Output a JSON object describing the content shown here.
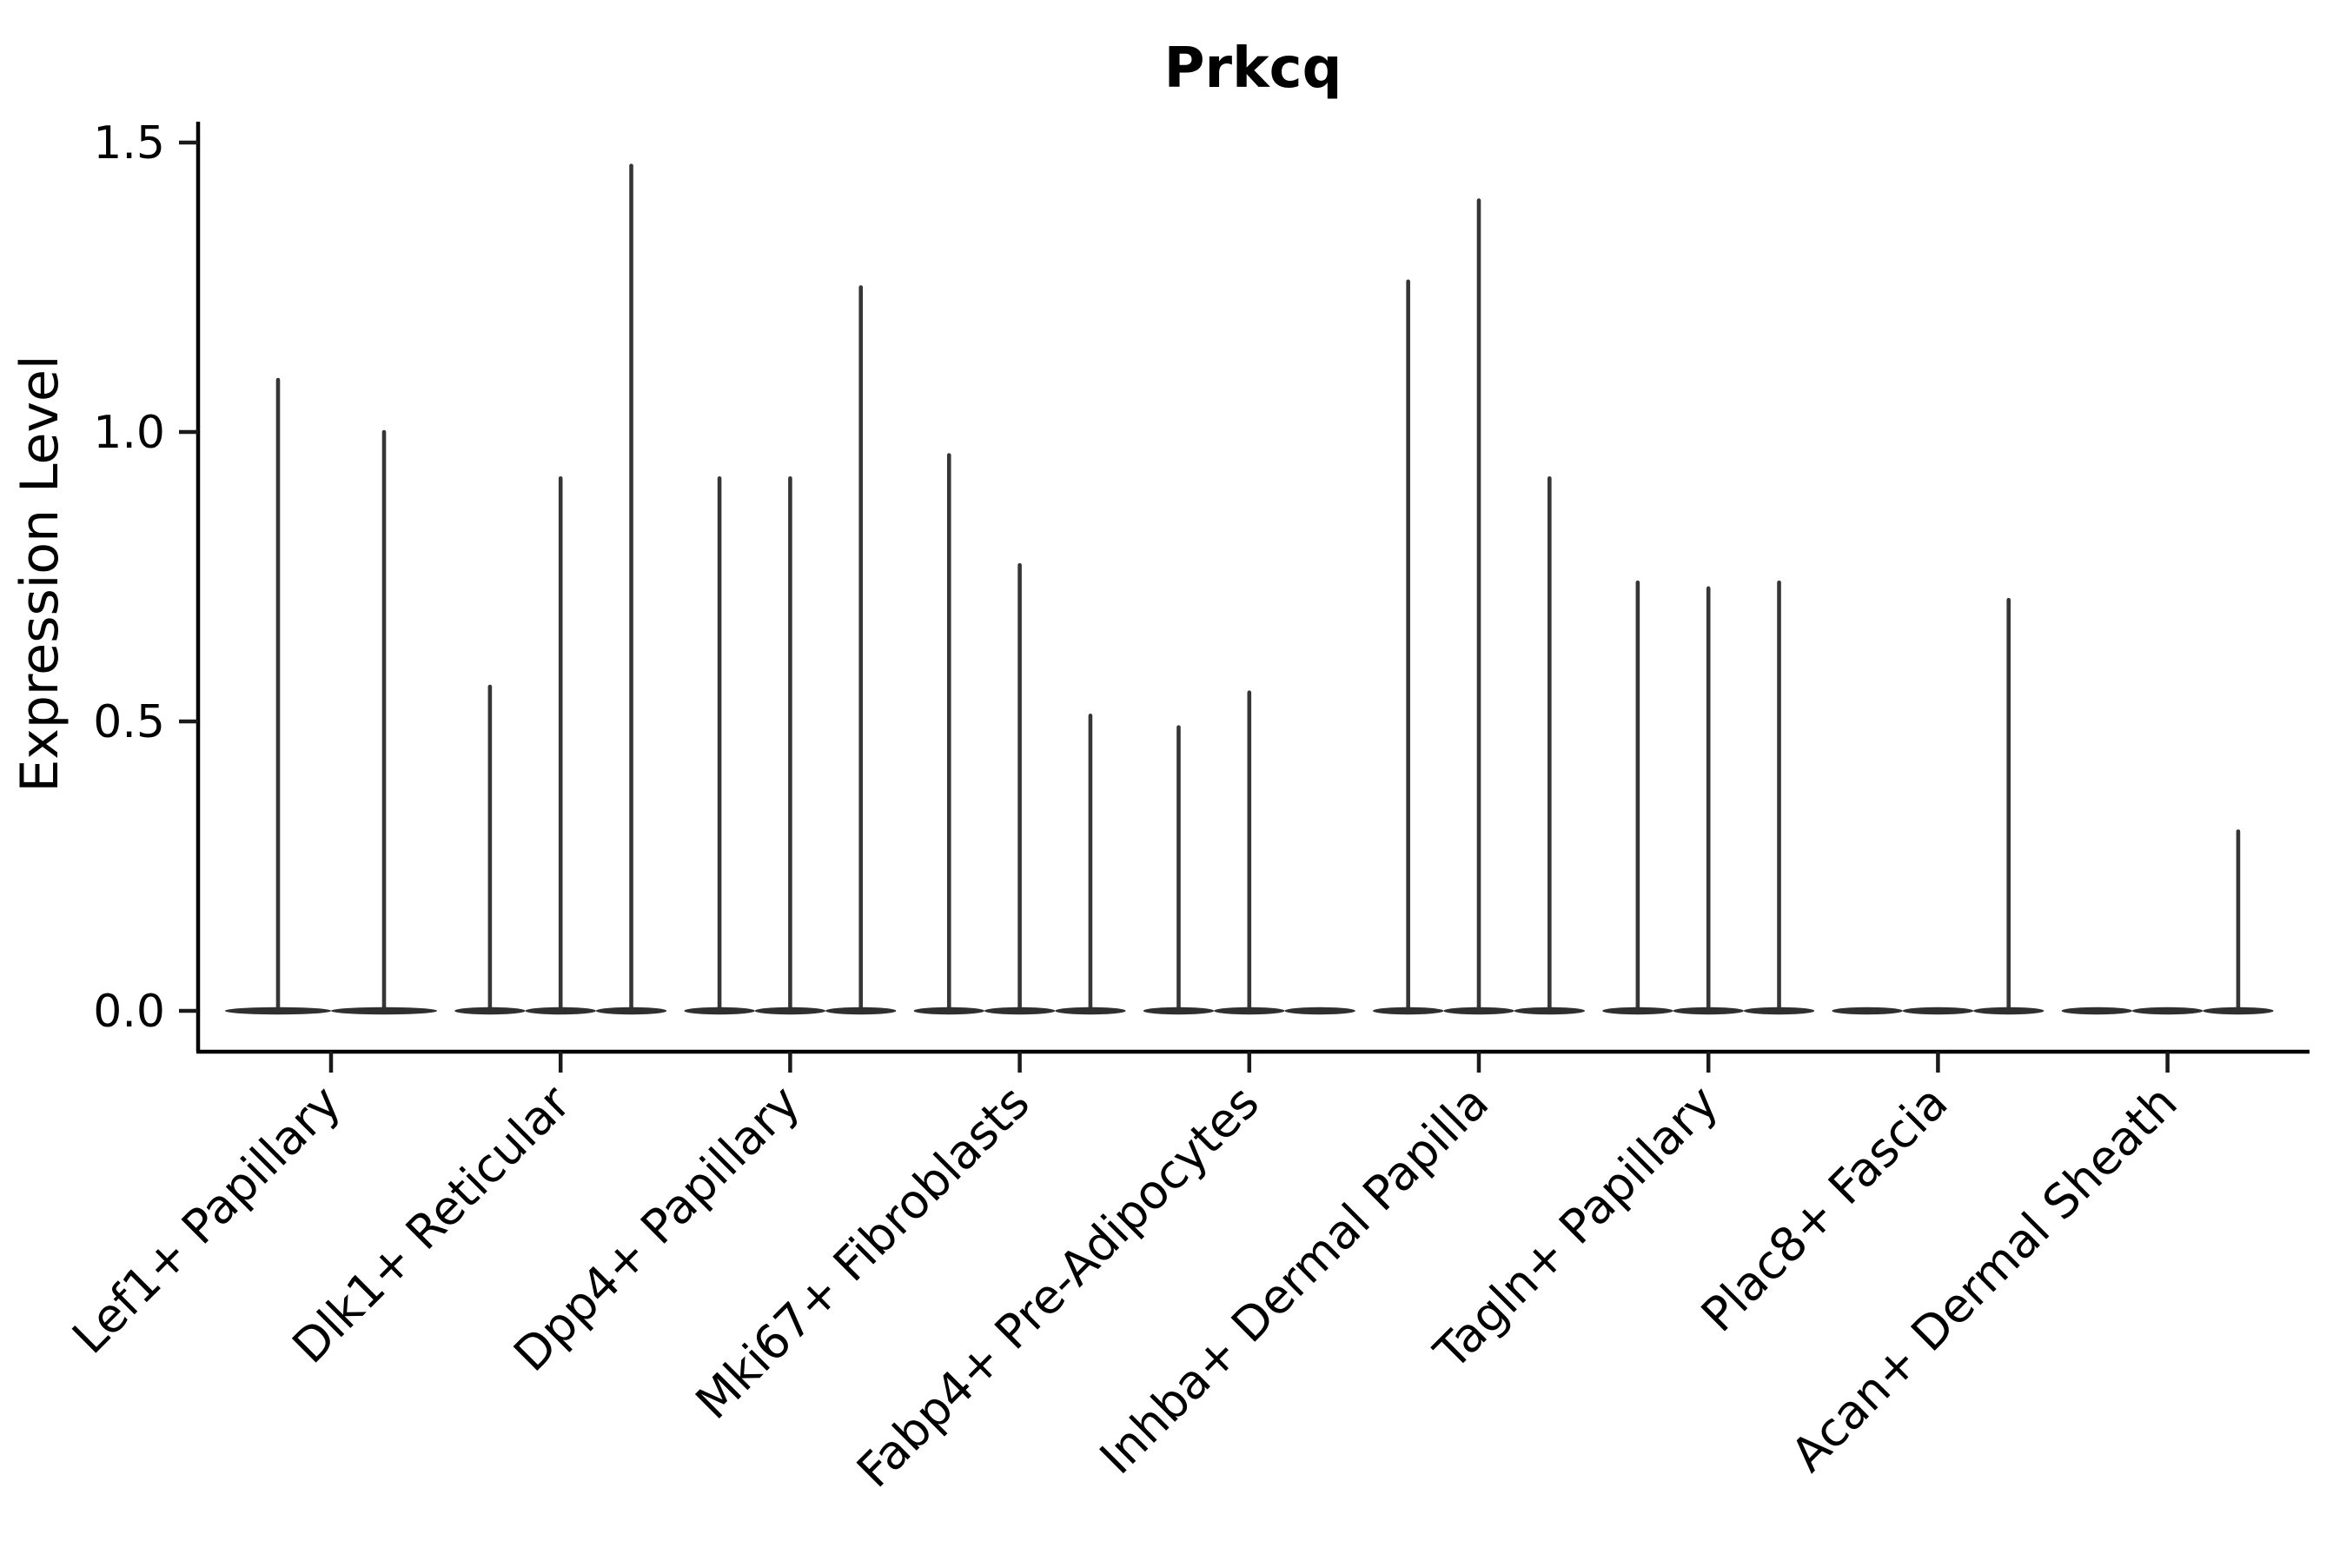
{
  "chart_data": {
    "type": "violin",
    "title": "Prkcq",
    "ylabel": "Expression Level",
    "xlabel": "",
    "yticks": [
      0.0,
      0.5,
      1.0,
      1.5
    ],
    "ylim": [
      0,
      1.5
    ],
    "grid": "off",
    "legend": "none",
    "description": "Stacked violin plot of gene expression; each category holds narrow spike-shaped violins (collapsed at 0 with a thin tail up to the max expression value).",
    "categories": [
      "Lef1+ Papillary",
      "Dlk1+ Reticular",
      "Dpp4+ Papillary",
      "Mki67+ Fibroblasts",
      "Fabp4+ Pre-Adipocytes",
      "Inhba+ Dermal Papilla",
      "Tagln+ Papillary",
      "Plac8+ Fascia",
      "Acan+ Dermal Sheath"
    ],
    "groups": [
      {
        "category": "Lef1+ Papillary",
        "violin_max_values": [
          1.09,
          1.0
        ]
      },
      {
        "category": "Dlk1+ Reticular",
        "violin_max_values": [
          0.56,
          0.92,
          1.46
        ]
      },
      {
        "category": "Dpp4+ Papillary",
        "violin_max_values": [
          0.92,
          0.92,
          1.25
        ]
      },
      {
        "category": "Mki67+ Fibroblasts",
        "violin_max_values": [
          0.96,
          0.77,
          0.51
        ]
      },
      {
        "category": "Fabp4+ Pre-Adipocytes",
        "violin_max_values": [
          0.49,
          0.55,
          0.0
        ]
      },
      {
        "category": "Inhba+ Dermal Papilla",
        "violin_max_values": [
          1.26,
          1.4,
          0.92
        ]
      },
      {
        "category": "Tagln+ Papillary",
        "violin_max_values": [
          0.74,
          0.73,
          0.74
        ]
      },
      {
        "category": "Plac8+ Fascia",
        "violin_max_values": [
          0.0,
          0.0,
          0.71
        ]
      },
      {
        "category": "Acan+ Dermal Sheath",
        "violin_max_values": [
          0.0,
          0.0,
          0.31
        ]
      }
    ],
    "colors": {
      "violin_spike": "#363636",
      "violin_body": "#2f2f2f",
      "axis_line": "#000000",
      "tick_mark": "#1a1a1a",
      "text": "#000000",
      "background": "#ffffff"
    }
  }
}
